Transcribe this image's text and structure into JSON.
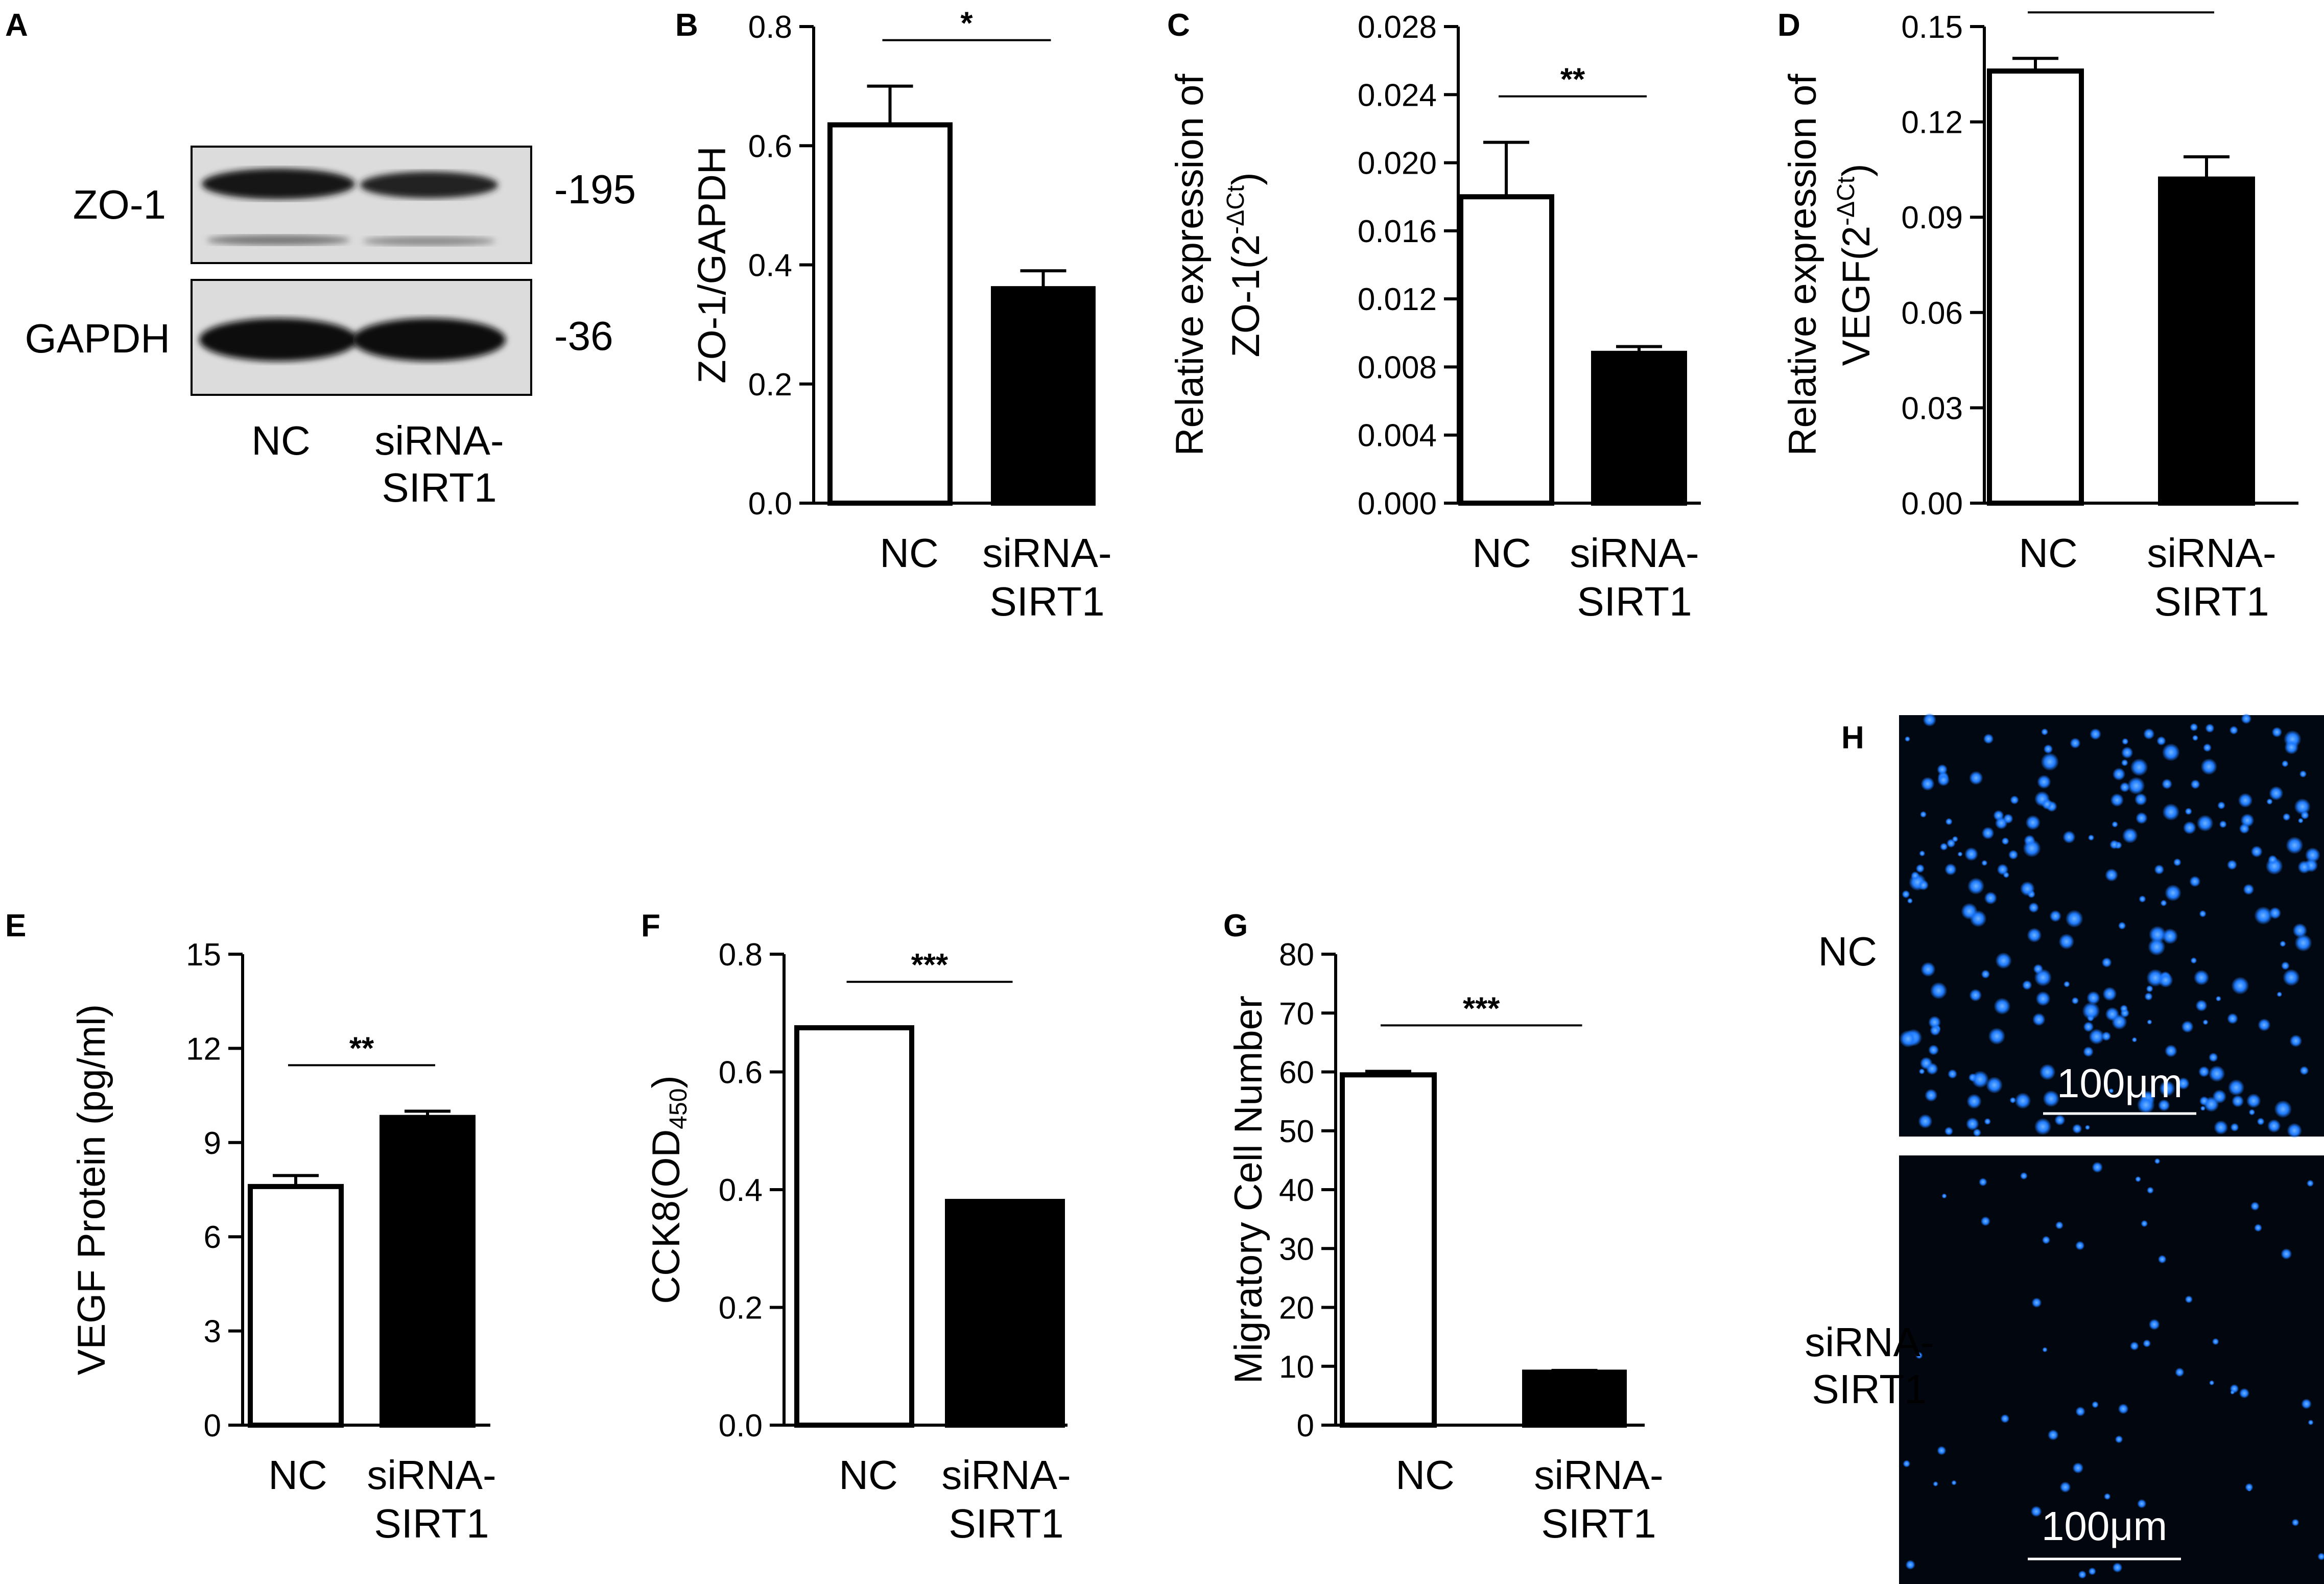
{
  "panels": {
    "A": {
      "letter": "A",
      "rows": [
        {
          "label": "ZO-1",
          "mw": "-195"
        },
        {
          "label": "GAPDH",
          "mw": "-36"
        }
      ],
      "lanes": [
        "NC",
        "siRNA-\nSIRT1"
      ]
    },
    "H": {
      "letter": "H",
      "rows": [
        "NC",
        "siRNA-\nSIRT1"
      ],
      "scale_bar": "100μm"
    }
  },
  "chart_data": [
    {
      "id": "B",
      "letter": "B",
      "type": "bar",
      "categories": [
        "NC",
        "siRNA-\nSIRT1"
      ],
      "values": [
        0.635,
        0.36
      ],
      "errors": [
        0.065,
        0.03
      ],
      "ylabel": [
        "ZO-1/GAPDH"
      ],
      "ylim": [
        0,
        0.8
      ],
      "ticks": [
        0.0,
        0.2,
        0.4,
        0.6,
        0.8
      ],
      "tick_decimals": 1,
      "significance": "*"
    },
    {
      "id": "C",
      "letter": "C",
      "type": "bar",
      "categories": [
        "NC",
        "siRNA-\nSIRT1"
      ],
      "values": [
        0.018,
        0.0088
      ],
      "errors": [
        0.0032,
        0.0004
      ],
      "ylabel": [
        "Relative expression of",
        "ZO-1(2^-ΔCt)"
      ],
      "ylim": [
        0,
        0.028
      ],
      "ticks": [
        0.0,
        0.004,
        0.008,
        0.012,
        0.016,
        0.02,
        0.024,
        0.028
      ],
      "tick_decimals": 3,
      "significance": "**"
    },
    {
      "id": "D",
      "letter": "D",
      "type": "bar",
      "categories": [
        "NC",
        "siRNA-\nSIRT1"
      ],
      "values": [
        0.136,
        0.102
      ],
      "errors": [
        0.004,
        0.007
      ],
      "ylabel": [
        "Relative expression of",
        "VEGF(2^-ΔCt)"
      ],
      "ylim": [
        0,
        0.15
      ],
      "ticks": [
        0.0,
        0.03,
        0.06,
        0.09,
        0.12,
        0.15
      ],
      "tick_decimals": 2,
      "significance": "**"
    },
    {
      "id": "E",
      "letter": "E",
      "type": "bar",
      "categories": [
        "NC",
        "siRNA-\nSIRT1"
      ],
      "values": [
        7.6,
        9.8
      ],
      "errors": [
        0.35,
        0.2
      ],
      "ylabel": [
        "VEGF Protein (pg/ml)"
      ],
      "ylim": [
        0,
        15
      ],
      "ticks": [
        0,
        3,
        6,
        9,
        12,
        15
      ],
      "tick_decimals": 0,
      "significance": "**"
    },
    {
      "id": "F",
      "letter": "F",
      "type": "bar",
      "categories": [
        "NC",
        "siRNA-\nSIRT1"
      ],
      "values": [
        0.675,
        0.38
      ],
      "errors": [
        0,
        0
      ],
      "ylabel": [
        "CCK8(OD_450)"
      ],
      "ylim": [
        0,
        0.8
      ],
      "ticks": [
        0.0,
        0.2,
        0.4,
        0.6,
        0.8
      ],
      "tick_decimals": 1,
      "significance": "***"
    },
    {
      "id": "G",
      "letter": "G",
      "type": "bar",
      "categories": [
        "NC",
        "siRNA-\nSIRT1"
      ],
      "values": [
        59.5,
        9.0
      ],
      "errors": [
        0.6,
        0.3
      ],
      "ylabel": [
        "Migratory Cell Number"
      ],
      "ylim": [
        0,
        80
      ],
      "ticks": [
        0,
        10,
        20,
        30,
        40,
        50,
        60,
        70,
        80
      ],
      "tick_decimals": 0,
      "significance": "***"
    }
  ],
  "colors": {
    "nc_fill": "#ffffff",
    "sirna_fill": "#000000",
    "micro_bg": "#020812",
    "nuclei": "#1f7bff"
  }
}
